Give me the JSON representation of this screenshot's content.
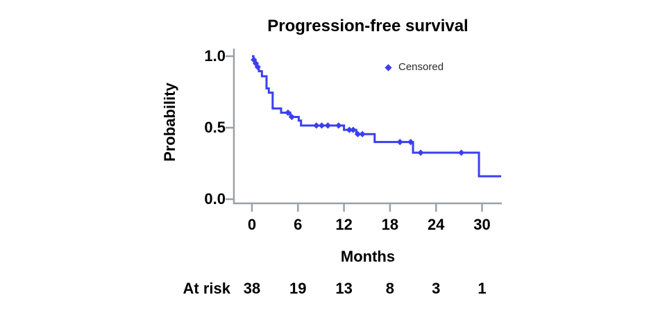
{
  "chart_data": {
    "type": "line",
    "subtype": "kaplan-meier-step",
    "title": "Progression-free survival",
    "xlabel": "Months",
    "ylabel": "Probability",
    "x_ticks": [
      0,
      6,
      12,
      18,
      24,
      30
    ],
    "y_ticks": [
      1.0,
      0.5,
      0.0
    ],
    "xlim": [
      -2.4,
      32.6
    ],
    "ylim": [
      0,
      1.05
    ],
    "grid": false,
    "legend": {
      "label": "Censored",
      "marker": "diamond-icon",
      "position": "top-right-inside"
    },
    "series": [
      {
        "name": "Progression-free survival",
        "color": "#3b3ff0",
        "steps": [
          [
            0,
            1.0
          ],
          [
            0.2,
            0.975
          ],
          [
            0.45,
            0.95
          ],
          [
            0.65,
            0.925
          ],
          [
            0.9,
            0.895
          ],
          [
            1.3,
            0.86
          ],
          [
            1.9,
            0.775
          ],
          [
            2.2,
            0.745
          ],
          [
            2.7,
            0.635
          ],
          [
            3.8,
            0.605
          ],
          [
            5.0,
            0.575
          ],
          [
            6.1,
            0.55
          ],
          [
            6.4,
            0.515
          ],
          [
            12.0,
            0.485
          ],
          [
            13.6,
            0.455
          ],
          [
            16.0,
            0.4
          ],
          [
            21.0,
            0.325
          ],
          [
            29.6,
            0.16
          ]
        ],
        "end_x": 32.5
      }
    ],
    "censored": [
      [
        0.25,
        0.975
      ],
      [
        0.5,
        0.95
      ],
      [
        0.75,
        0.925
      ],
      [
        4.7,
        0.605
      ],
      [
        5.2,
        0.575
      ],
      [
        8.4,
        0.515
      ],
      [
        9.1,
        0.515
      ],
      [
        9.9,
        0.515
      ],
      [
        11.3,
        0.515
      ],
      [
        12.7,
        0.485
      ],
      [
        13.2,
        0.485
      ],
      [
        13.8,
        0.455
      ],
      [
        14.4,
        0.455
      ],
      [
        19.3,
        0.4
      ],
      [
        20.7,
        0.4
      ],
      [
        22.0,
        0.325
      ],
      [
        27.3,
        0.325
      ]
    ],
    "at_risk": {
      "label": "At risk",
      "values": [
        38,
        19,
        13,
        8,
        3,
        1
      ]
    },
    "colors": {
      "curve": "#3b3ff0",
      "axis": "#9aa0a6",
      "text": "#000000",
      "legend_text": "#2a2a2a",
      "background": "#ffffff"
    }
  }
}
